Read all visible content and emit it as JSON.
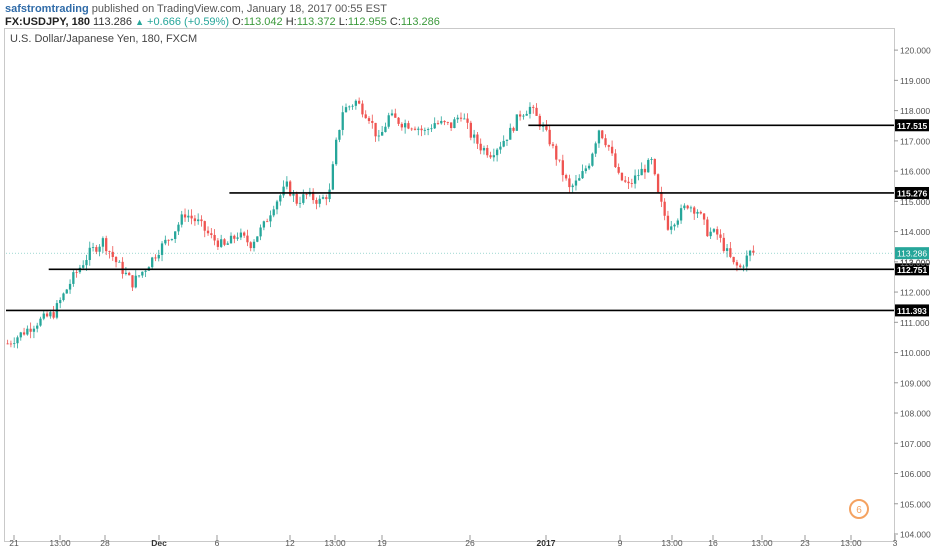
{
  "header": {
    "username": "safstromtrading",
    "published_text": " published on TradingView.com, January 18, 2017 00:55 EST",
    "symbol": "FX:USDJPY, 180",
    "last_price": "113.286",
    "change": "+0.666 (+0.59%)",
    "open": "113.042",
    "high": "113.372",
    "low": "112.955",
    "close": "113.286"
  },
  "instrument_title": "U.S. Dollar/Japanese Yen, 180, FXCM",
  "colors": {
    "up_candle": "#26a69a",
    "down_candle": "#ef5350",
    "level_line": "#000000",
    "price_label_bg": "#26a69a"
  },
  "chart_data": {
    "type": "candlestick",
    "ylim": [
      104.0,
      120.5
    ],
    "y_ticks": [
      "104.000",
      "105.000",
      "106.000",
      "107.000",
      "108.000",
      "109.000",
      "110.000",
      "111.000",
      "112.000",
      "113.000",
      "114.000",
      "115.000",
      "116.000",
      "117.000",
      "118.000",
      "119.000",
      "120.000"
    ],
    "x_ticks": [
      "21",
      "13:00",
      "28",
      "Dec",
      "6",
      "12",
      "13:00",
      "19",
      "26",
      "2017",
      "9",
      "13:00",
      "16",
      "13:00",
      "23",
      "13:00",
      "3"
    ],
    "price_path": [
      [
        0,
        110.3
      ],
      [
        9,
        111.0
      ],
      [
        14,
        111.3
      ],
      [
        16,
        111.7
      ],
      [
        20,
        112.5
      ],
      [
        25,
        113.3
      ],
      [
        29,
        113.7
      ],
      [
        33,
        113.0
      ],
      [
        38,
        112.3
      ],
      [
        42,
        112.8
      ],
      [
        46,
        113.4
      ],
      [
        50,
        113.9
      ],
      [
        54,
        114.6
      ],
      [
        58,
        114.3
      ],
      [
        62,
        113.8
      ],
      [
        66,
        113.5
      ],
      [
        70,
        113.9
      ],
      [
        74,
        113.6
      ],
      [
        78,
        114.2
      ],
      [
        81,
        114.9
      ],
      [
        85,
        115.5
      ],
      [
        88,
        115.0
      ],
      [
        91,
        115.2
      ],
      [
        95,
        115.0
      ],
      [
        98,
        115.3
      ],
      [
        100,
        116.9
      ],
      [
        102,
        118.0
      ],
      [
        106,
        118.3
      ],
      [
        110,
        117.8
      ],
      [
        113,
        117.0
      ],
      [
        116,
        117.8
      ],
      [
        120,
        117.6
      ],
      [
        124,
        117.5
      ],
      [
        127,
        117.3
      ],
      [
        130,
        117.6
      ],
      [
        135,
        117.5
      ],
      [
        138,
        117.9
      ],
      [
        141,
        117.2
      ],
      [
        144,
        116.8
      ],
      [
        147,
        116.6
      ],
      [
        150,
        116.9
      ],
      [
        153,
        117.3
      ],
      [
        156,
        117.9
      ],
      [
        159,
        118.1
      ],
      [
        162,
        117.6
      ],
      [
        165,
        117.0
      ],
      [
        168,
        116.2
      ],
      [
        171,
        115.4
      ],
      [
        174,
        115.7
      ],
      [
        177,
        116.3
      ],
      [
        180,
        117.4
      ],
      [
        183,
        116.8
      ],
      [
        186,
        115.8
      ],
      [
        189,
        115.5
      ],
      [
        192,
        115.9
      ],
      [
        196,
        116.3
      ],
      [
        198,
        115.2
      ],
      [
        201,
        114.2
      ],
      [
        204,
        114.5
      ],
      [
        207,
        114.9
      ],
      [
        210,
        114.7
      ],
      [
        213,
        114.0
      ],
      [
        216,
        113.9
      ],
      [
        219,
        113.3
      ],
      [
        221,
        112.9
      ],
      [
        223,
        112.8
      ],
      [
        226,
        113.3
      ]
    ],
    "levels": [
      {
        "label": "117.515",
        "value": 117.515,
        "x_start_index": 159
      },
      {
        "label": "115.276",
        "value": 115.276,
        "x_start_index": 68
      },
      {
        "label": "112.751",
        "value": 112.751,
        "x_start_index": 13
      },
      {
        "label": "111.393",
        "value": 111.393,
        "x_start_index": 0
      }
    ],
    "current_price_label": "113.286",
    "secondary_label": "113.000"
  }
}
